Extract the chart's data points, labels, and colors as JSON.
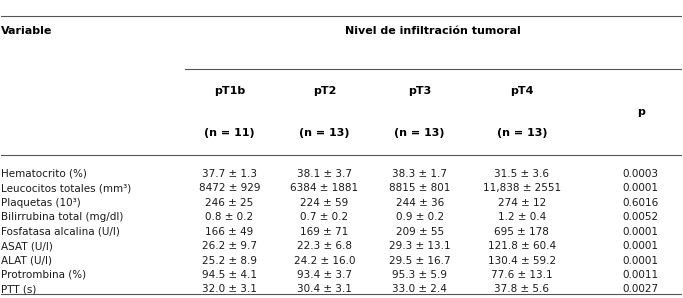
{
  "title": "Nivel de infiltración tumoral",
  "col_header_main": "Variable",
  "columns": [
    "pT1b\n(n = 11)",
    "pT2\n(n = 13)",
    "pT3\n(n = 13)",
    "pT4\n(n = 13)",
    "p"
  ],
  "rows": [
    [
      "Hematocrito (%)",
      "37.7 ± 1.3",
      "38.1 ± 3.7",
      "38.3 ± 1.7",
      "31.5 ± 3.6",
      "0.0003"
    ],
    [
      "Leucocitos totales (mm³)",
      "8472 ± 929",
      "6384 ± 1881",
      "8815 ± 801",
      "11,838 ± 2551",
      "0.0001"
    ],
    [
      "Plaquetas (10³)",
      "246 ± 25",
      "224 ± 59",
      "244 ± 36",
      "274 ± 12",
      "0.6016"
    ],
    [
      "Bilirrubina total (mg/dl)",
      "0.8 ± 0.2",
      "0.7 ± 0.2",
      "0.9 ± 0.2",
      "1.2 ± 0.4",
      "0.0052"
    ],
    [
      "Fosfatasa alcalina (U/l)",
      "166 ± 49",
      "169 ± 71",
      "209 ± 55",
      "695 ± 178",
      "0.0001"
    ],
    [
      "ASAT (U/l)",
      "26.2 ± 9.7",
      "22.3 ± 6.8",
      "29.3 ± 13.1",
      "121.8 ± 60.4",
      "0.0001"
    ],
    [
      "ALAT (U/l)",
      "25.2 ± 8.9",
      "24.2 ± 16.0",
      "29.5 ± 16.7",
      "130.4 ± 59.2",
      "0.0001"
    ],
    [
      "Protrombina (%)",
      "94.5 ± 4.1",
      "93.4 ± 3.7",
      "95.3 ± 5.9",
      "77.6 ± 13.1",
      "0.0011"
    ],
    [
      "PTT (s)",
      "32.0 ± 3.1",
      "30.4 ± 3.1",
      "33.0 ± 2.4",
      "37.8 ± 5.6",
      "0.0027"
    ]
  ],
  "bg_color": "#ffffff",
  "text_color": "#1a1a1a",
  "header_color": "#000000",
  "line_color": "#555555",
  "fontsize": 7.5,
  "header_fontsize": 8.0
}
